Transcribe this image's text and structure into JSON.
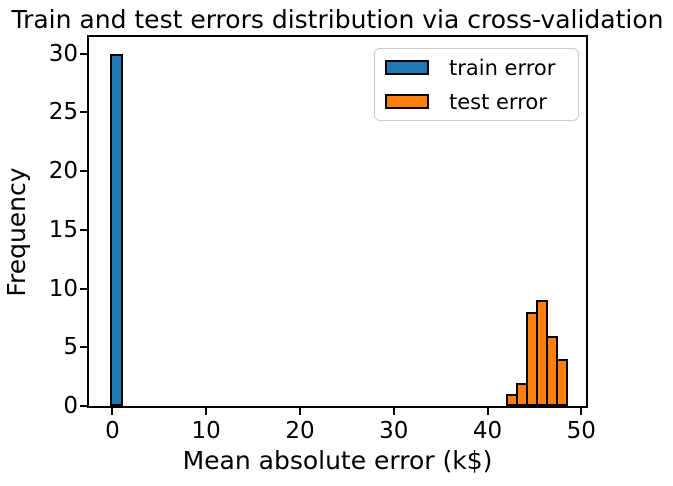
{
  "figure": {
    "background": "#ffffff",
    "text_color": "#000000",
    "spine_color": "#000000"
  },
  "chart_data": {
    "type": "histogram",
    "title": "Train and test errors distribution via cross-validation",
    "xlabel": "Mean absolute error (k$)",
    "ylabel": "Frequency",
    "xlim": [
      -2.5,
      50.5
    ],
    "ylim": [
      0,
      31.4
    ],
    "x_ticks": [
      0,
      10,
      20,
      30,
      40,
      50
    ],
    "y_ticks": [
      0,
      5,
      10,
      15,
      20,
      25,
      30
    ],
    "grid": false,
    "bar_edge_color": "#000000",
    "legend": {
      "position": "upper right",
      "border_color": "#cccccc",
      "background": "#ffffff"
    },
    "series": [
      {
        "name": "train error",
        "color": "#1f77b4",
        "bins": [
          {
            "start": -0.31,
            "end": 0.86,
            "count": 30
          }
        ]
      },
      {
        "name": "test error",
        "color": "#ff7f0e",
        "bins": [
          {
            "start": 41.97,
            "end": 43.04,
            "count": 1
          },
          {
            "start": 43.04,
            "end": 44.1,
            "count": 2
          },
          {
            "start": 44.1,
            "end": 45.17,
            "count": 8
          },
          {
            "start": 45.17,
            "end": 46.24,
            "count": 9
          },
          {
            "start": 46.24,
            "end": 47.3,
            "count": 6
          },
          {
            "start": 47.3,
            "end": 48.37,
            "count": 4
          }
        ]
      }
    ]
  }
}
